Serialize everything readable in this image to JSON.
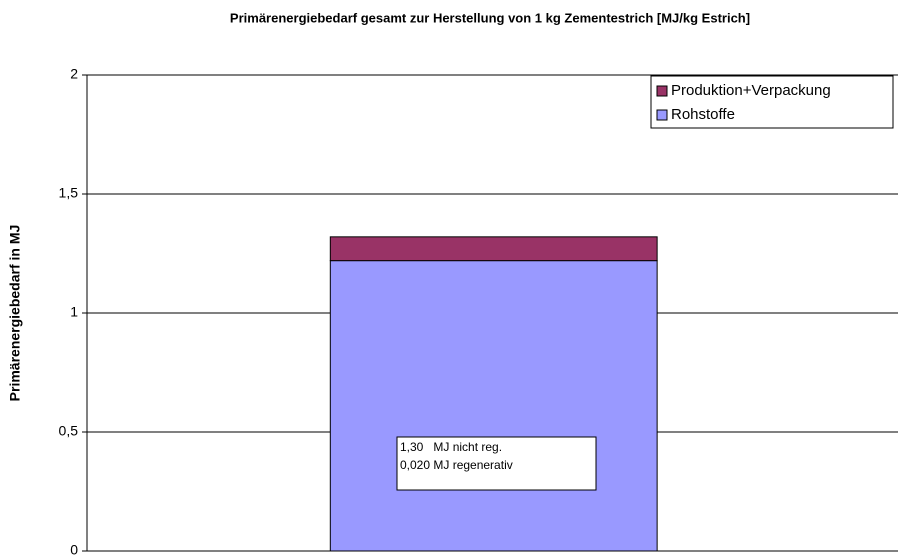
{
  "chart_data": {
    "type": "bar",
    "stacked": true,
    "title": "Primärenergiebedarf gesamt zur Herstellung von 1 kg Zementestrich [MJ/kg Estrich]",
    "y_label": "Primärenergiebedarf in MJ",
    "categories": [
      null
    ],
    "series": [
      {
        "name": "Rohstoffe",
        "color": "#9999ff",
        "values": [
          1.22
        ]
      },
      {
        "name": "Produktion+Verpackung",
        "color": "#993366",
        "values": [
          0.1
        ]
      }
    ],
    "ylim": [
      0,
      2
    ],
    "yticks": [
      0,
      {
        "value": 0.5,
        "label": "0,5"
      },
      1,
      {
        "value": 1.5,
        "label": "1,5"
      },
      2
    ],
    "grid": true,
    "legend": "upper right",
    "annotations": [
      "1,30   MJ nicht reg.",
      "0,020 MJ regenerativ"
    ]
  }
}
